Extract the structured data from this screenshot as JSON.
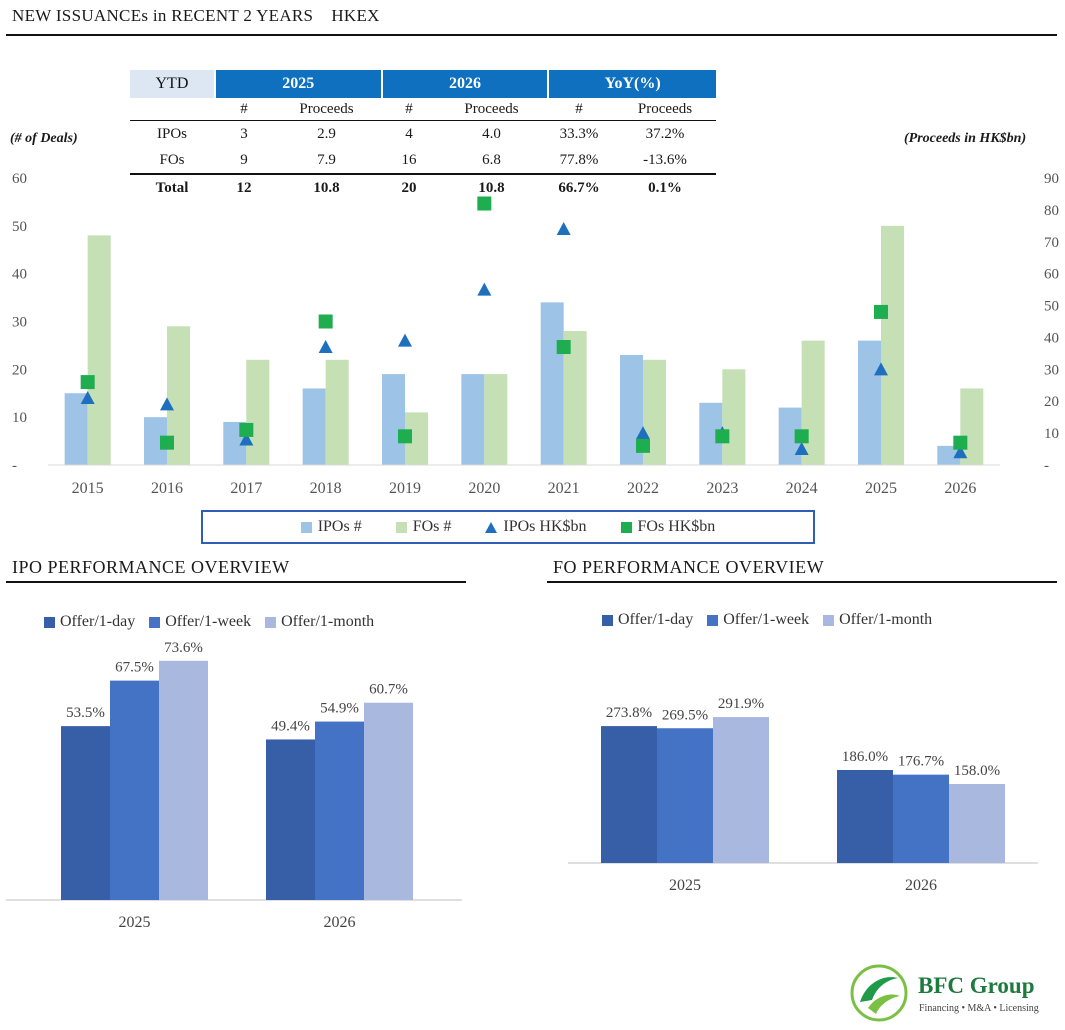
{
  "header": {
    "title": "NEW ISSUANCEs in RECENT 2 YEARS",
    "exchange": "HKEX"
  },
  "ytd_table": {
    "corner": "YTD",
    "col_groups": [
      "2025",
      "2026",
      "YoY(%)"
    ],
    "sub_headers": [
      "#",
      "Proceeds",
      "#",
      "Proceeds",
      "#",
      "Proceeds"
    ],
    "rows": [
      {
        "label": "IPOs",
        "cells": [
          "3",
          "2.9",
          "4",
          "4.0",
          "33.3%",
          "37.2%"
        ]
      },
      {
        "label": "FOs",
        "cells": [
          "9",
          "7.9",
          "16",
          "6.8",
          "77.8%",
          "-13.6%"
        ]
      },
      {
        "label": "Total",
        "cells": [
          "12",
          "10.8",
          "20",
          "10.8",
          "66.7%",
          "0.1%"
        ]
      }
    ]
  },
  "colors": {
    "ipo_bar": "#9dc3e6",
    "fo_bar": "#c5e0b4",
    "ipo_marker": "#1f6fbf",
    "fo_marker": "#1ead4f",
    "perf_1day": "#365fa8",
    "perf_1week": "#4472c4",
    "perf_1month": "#a9b8df",
    "ytd_header": "#1070c0"
  },
  "chart_data": [
    {
      "type": "bar",
      "title": "NEW ISSUANCEs in RECENT 2 YEARS HKEX",
      "categories": [
        "2015",
        "2016",
        "2017",
        "2018",
        "2019",
        "2020",
        "2021",
        "2022",
        "2023",
        "2024",
        "2025",
        "2026"
      ],
      "series": [
        {
          "name": "IPOs #",
          "axis": "left",
          "kind": "bar",
          "values": [
            15,
            10,
            9,
            16,
            19,
            19,
            34,
            23,
            13,
            12,
            26,
            4
          ]
        },
        {
          "name": "FOs #",
          "axis": "left",
          "kind": "bar",
          "values": [
            48,
            29,
            22,
            22,
            11,
            19,
            28,
            22,
            20,
            26,
            50,
            16
          ]
        },
        {
          "name": "IPOs HK$bn",
          "axis": "right",
          "kind": "triangle",
          "values": [
            21,
            19,
            8,
            37,
            39,
            55,
            74,
            10,
            10,
            5,
            30,
            4
          ]
        },
        {
          "name": "FOs HK$bn",
          "axis": "right",
          "kind": "square",
          "values": [
            26,
            7,
            11,
            45,
            9,
            82,
            37,
            6,
            9,
            9,
            48,
            7
          ]
        }
      ],
      "ylabel": "(# of Deals)",
      "y2label": "(Proceeds in HK$bn)",
      "ylim": [
        0,
        60
      ],
      "y2lim": [
        0,
        90
      ],
      "yticks": [
        "-",
        "10",
        "20",
        "30",
        "40",
        "50",
        "60"
      ],
      "y2ticks": [
        "-",
        "10",
        "20",
        "30",
        "40",
        "50",
        "60",
        "70",
        "80",
        "90"
      ],
      "legend": "bottom"
    },
    {
      "type": "bar",
      "title": "IPO PERFORMANCE OVERVIEW",
      "categories": [
        "2025",
        "2026"
      ],
      "series": [
        {
          "name": "Offer/1-day",
          "values": [
            53.5,
            49.4
          ]
        },
        {
          "name": "Offer/1-week",
          "values": [
            67.5,
            54.9
          ]
        },
        {
          "name": "Offer/1-month",
          "values": [
            73.6,
            60.7
          ]
        }
      ],
      "labels": [
        [
          "53.5%",
          "67.5%",
          "73.6%"
        ],
        [
          "49.4%",
          "54.9%",
          "60.7%"
        ]
      ],
      "legend": "top"
    },
    {
      "type": "bar",
      "title": "FO PERFORMANCE OVERVIEW",
      "categories": [
        "2025",
        "2026"
      ],
      "series": [
        {
          "name": "Offer/1-day",
          "values": [
            273.8,
            186.0
          ]
        },
        {
          "name": "Offer/1-week",
          "values": [
            269.5,
            176.7
          ]
        },
        {
          "name": "Offer/1-month",
          "values": [
            291.9,
            158.0
          ]
        }
      ],
      "labels": [
        [
          "273.8%",
          "269.5%",
          "291.9%"
        ],
        [
          "186.0%",
          "176.7%",
          "158.0%"
        ]
      ],
      "legend": "top"
    }
  ],
  "logo": {
    "name": "BFC Group",
    "tagline": "Financing • M&A • Licensing"
  }
}
